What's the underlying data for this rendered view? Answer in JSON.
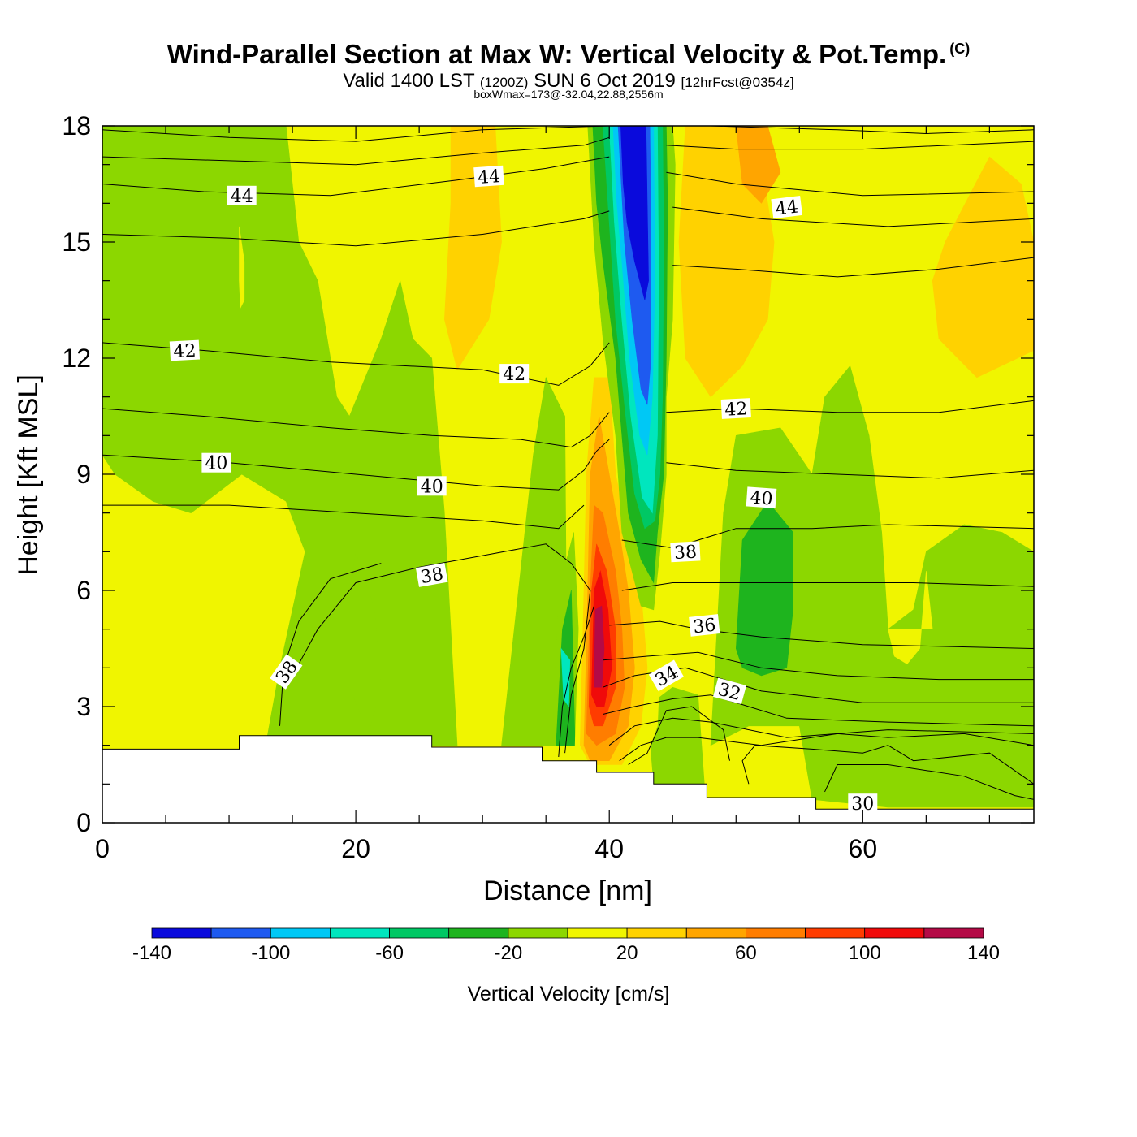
{
  "header": {
    "title": "Wind-Parallel Section at Max W: Vertical Velocity & Pot.Temp.",
    "copyright": "(C)",
    "valid_prefix": "Valid 1400 LST",
    "valid_utc": "(1200Z)",
    "valid_date": "SUN 6 Oct 2019",
    "forecast": "[12hrFcst@0354z]",
    "box_info": "boxWmax=173@-32.04,22.88,2556m"
  },
  "chart_data": {
    "type": "contour",
    "title": "Wind-Parallel Section at Max W: Vertical Velocity & Pot.Temp.",
    "xlabel": "Distance [nm]",
    "ylabel": "Height [Kft MSL]",
    "xlim": [
      0,
      73.5
    ],
    "ylim": [
      0,
      18
    ],
    "x_ticks": [
      0,
      20,
      40,
      60
    ],
    "y_ticks": [
      0,
      3,
      6,
      9,
      12,
      15,
      18
    ],
    "colorbar": {
      "title": "Vertical Velocity [cm/s]",
      "levels": [
        -140,
        -120,
        -100,
        -80,
        -60,
        -40,
        -20,
        0,
        20,
        40,
        60,
        80,
        100,
        120,
        140
      ],
      "tick_labels": [
        -140,
        -100,
        -60,
        -20,
        20,
        60,
        100,
        140
      ],
      "colors": [
        "#0a0adc",
        "#1e5af0",
        "#00c8f5",
        "#00e6be",
        "#00c864",
        "#1eb41e",
        "#8cd700",
        "#f0f500",
        "#ffd200",
        "#ffa500",
        "#ff7d00",
        "#ff3c00",
        "#f00a0a",
        "#b40a46"
      ]
    },
    "w_regions": [
      {
        "name": "downdraft-core",
        "w_cm_s": -140,
        "x_range": [
          41,
          43.5
        ],
        "y_range": [
          13,
          18
        ]
      },
      {
        "name": "updraft-core",
        "w_cm_s": 130,
        "x_range": [
          38.5,
          40
        ],
        "y_range": [
          3.5,
          5.5
        ]
      },
      {
        "name": "terrain-sink-left",
        "w_cm_s": -60,
        "x_range": [
          36.5,
          37
        ],
        "y_range": [
          3,
          4.5
        ]
      },
      {
        "name": "green-east-cell",
        "w_cm_s": -30,
        "x_range": [
          50,
          54.5
        ],
        "y_range": [
          4,
          8
        ]
      }
    ],
    "theta_contours": [
      {
        "level": 44,
        "labels_at": [
          [
            11,
            16.2
          ],
          [
            30.5,
            16.7
          ],
          [
            54,
            15.9
          ]
        ]
      },
      {
        "level": 42,
        "labels_at": [
          [
            6.5,
            12.2
          ],
          [
            32.5,
            11.6
          ],
          [
            50,
            10.7
          ]
        ]
      },
      {
        "level": 40,
        "labels_at": [
          [
            9,
            9.3
          ],
          [
            26,
            8.7
          ],
          [
            52,
            8.4
          ]
        ]
      },
      {
        "level": 38,
        "labels_at": [
          [
            26,
            6.4
          ],
          [
            14.5,
            3.9
          ],
          [
            46,
            7
          ]
        ]
      },
      {
        "level": 36,
        "labels_at": [
          [
            47.5,
            5.1
          ]
        ]
      },
      {
        "level": 34,
        "labels_at": [
          [
            44.5,
            3.8
          ]
        ]
      },
      {
        "level": 32,
        "labels_at": [
          [
            49.5,
            3.4
          ]
        ]
      },
      {
        "level": 30,
        "labels_at": [
          [
            60,
            0.5
          ]
        ]
      }
    ],
    "terrain": {
      "x": [
        0,
        10.8,
        10.8,
        26,
        26,
        34.7,
        34.7,
        39,
        39,
        43.5,
        43.5,
        47.7,
        47.7,
        56.3,
        56.3,
        73.5
      ],
      "height_kft": [
        1.9,
        1.9,
        2.25,
        2.25,
        1.95,
        1.95,
        1.6,
        1.6,
        1.3,
        1.3,
        1.0,
        1.0,
        0.65,
        0.65,
        0.35,
        0.35
      ]
    }
  }
}
